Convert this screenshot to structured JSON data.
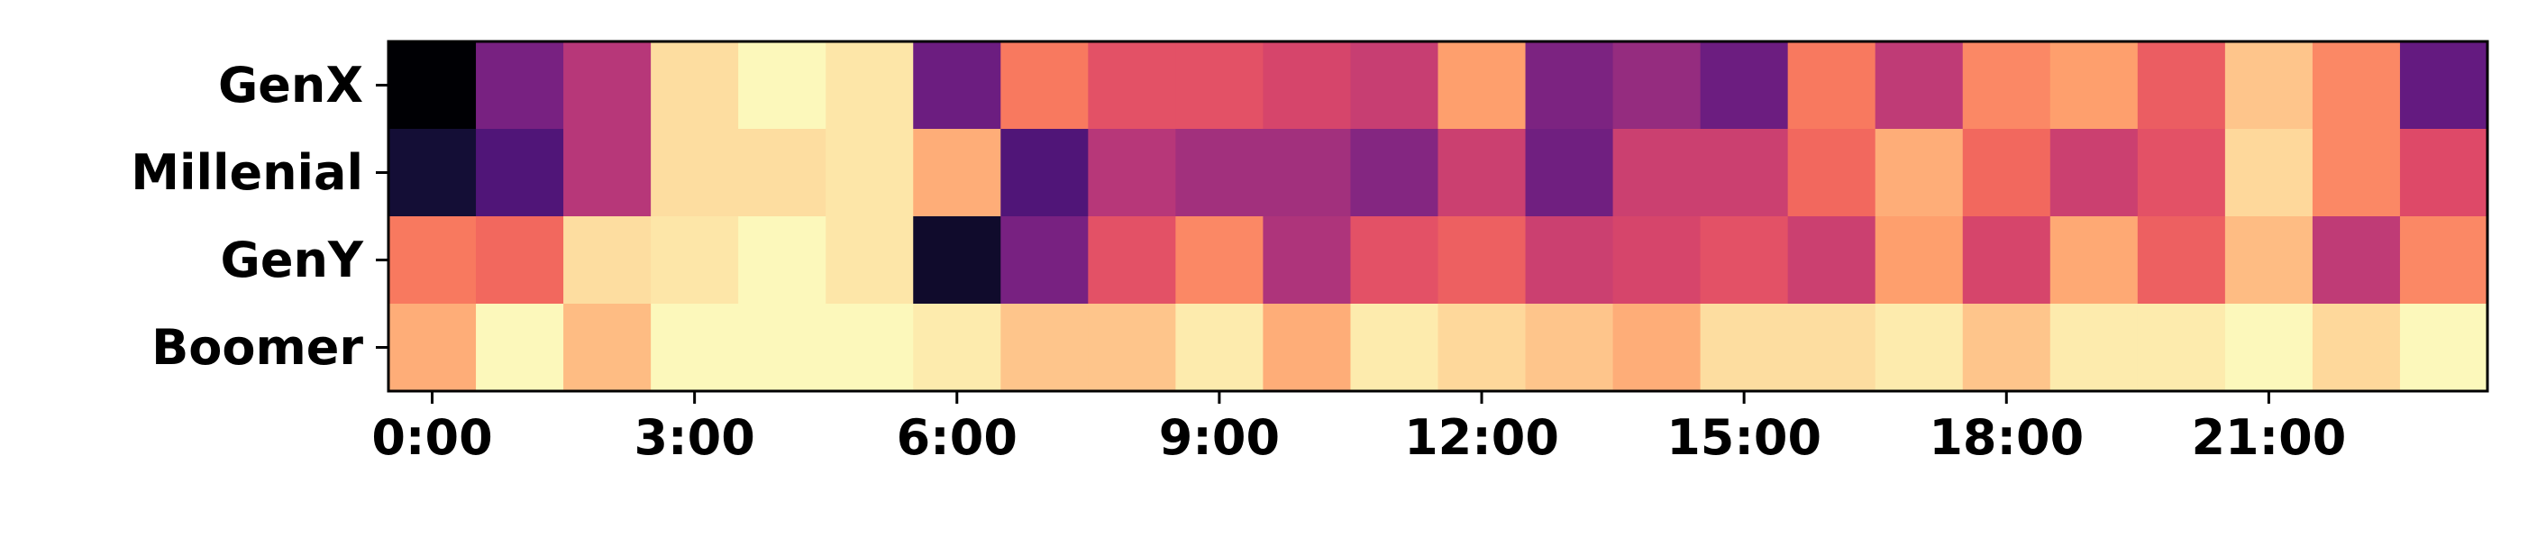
{
  "chart_data": {
    "type": "heatmap",
    "title": "",
    "xlabel": "",
    "ylabel": "",
    "colormap": "magma",
    "value_range": [
      0,
      1
    ],
    "rows": [
      "GenX",
      "Millenial",
      "GenY",
      "Boomer"
    ],
    "columns": [
      "0:00",
      "1:00",
      "2:00",
      "3:00",
      "4:00",
      "5:00",
      "6:00",
      "7:00",
      "8:00",
      "9:00",
      "10:00",
      "11:00",
      "12:00",
      "13:00",
      "14:00",
      "15:00",
      "16:00",
      "17:00",
      "18:00",
      "19:00",
      "20:00",
      "21:00",
      "22:00",
      "23:00"
    ],
    "xticks": [
      "0:00",
      "3:00",
      "6:00",
      "9:00",
      "12:00",
      "15:00",
      "18:00",
      "21:00"
    ],
    "values": [
      [
        0.0,
        0.35,
        0.5,
        0.93,
        0.99,
        0.95,
        0.32,
        0.72,
        0.62,
        0.62,
        0.58,
        0.54,
        0.8,
        0.36,
        0.42,
        0.32,
        0.72,
        0.52,
        0.75,
        0.8,
        0.65,
        0.88,
        0.75,
        0.3
      ],
      [
        0.1,
        0.25,
        0.5,
        0.93,
        0.93,
        0.95,
        0.83,
        0.25,
        0.5,
        0.45,
        0.45,
        0.38,
        0.55,
        0.33,
        0.55,
        0.55,
        0.68,
        0.83,
        0.68,
        0.55,
        0.62,
        0.92,
        0.75,
        0.6
      ],
      [
        0.72,
        0.68,
        0.93,
        0.95,
        0.99,
        0.95,
        0.08,
        0.35,
        0.62,
        0.75,
        0.48,
        0.62,
        0.66,
        0.55,
        0.58,
        0.62,
        0.55,
        0.8,
        0.58,
        0.82,
        0.66,
        0.86,
        0.52,
        0.75
      ],
      [
        0.83,
        0.99,
        0.86,
        0.99,
        0.99,
        0.99,
        0.96,
        0.88,
        0.88,
        0.96,
        0.83,
        0.96,
        0.92,
        0.88,
        0.83,
        0.93,
        0.93,
        0.96,
        0.88,
        0.96,
        0.96,
        0.99,
        0.92,
        0.99
      ]
    ]
  }
}
